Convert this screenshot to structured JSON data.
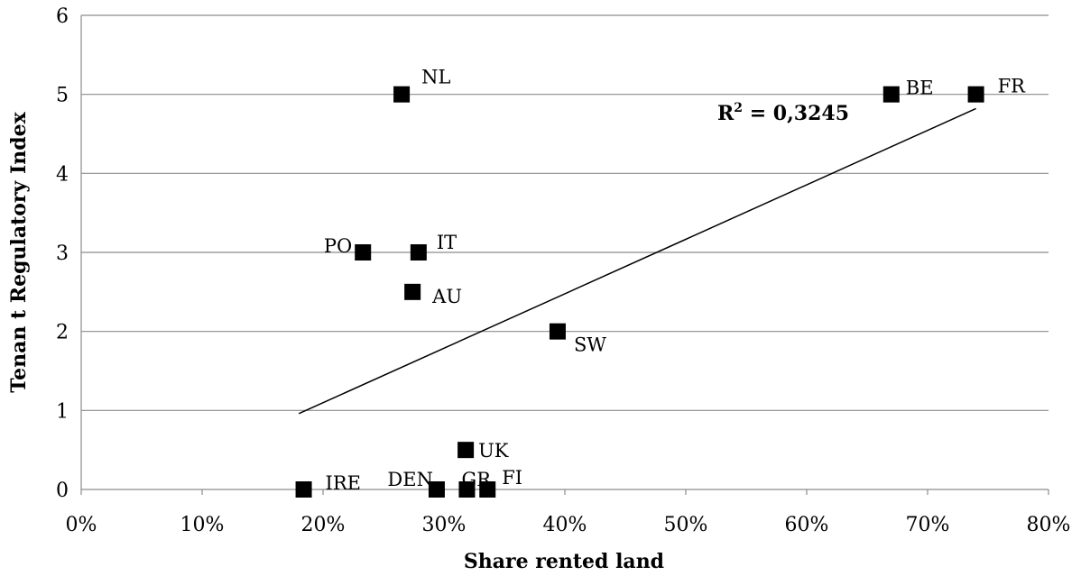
{
  "chart_data": {
    "type": "scatter",
    "xlabel": "Share rented land",
    "ylabel": "Tenan t Regulatory Index",
    "xlim": [
      0,
      0.8
    ],
    "ylim": [
      0,
      6
    ],
    "x_ticks": [
      "0%",
      "10%",
      "20%",
      "30%",
      "40%",
      "50%",
      "60%",
      "70%",
      "80%"
    ],
    "y_ticks": [
      "0",
      "1",
      "2",
      "3",
      "4",
      "5",
      "6"
    ],
    "grid": "horizontal",
    "points": [
      {
        "label": "NL",
        "x": 0.265,
        "y": 5.0
      },
      {
        "label": "BE",
        "x": 0.67,
        "y": 5.0
      },
      {
        "label": "FR",
        "x": 0.74,
        "y": 5.0
      },
      {
        "label": "PO",
        "x": 0.233,
        "y": 3.0
      },
      {
        "label": "IT",
        "x": 0.279,
        "y": 3.0
      },
      {
        "label": "AU",
        "x": 0.274,
        "y": 2.5
      },
      {
        "label": "SW",
        "x": 0.394,
        "y": 2.0
      },
      {
        "label": "UK",
        "x": 0.318,
        "y": 0.5
      },
      {
        "label": "IRE",
        "x": 0.184,
        "y": 0.0
      },
      {
        "label": "DEN",
        "x": 0.294,
        "y": 0.0
      },
      {
        "label": "GR",
        "x": 0.319,
        "y": 0.0
      },
      {
        "label": "FI",
        "x": 0.336,
        "y": 0.0
      }
    ],
    "trendline": {
      "x": [
        0.18,
        0.74
      ],
      "y": [
        0.96,
        4.82
      ]
    },
    "r2_prefix": "R",
    "r2_sup": "2",
    "r2_value": " = 0,3245"
  }
}
